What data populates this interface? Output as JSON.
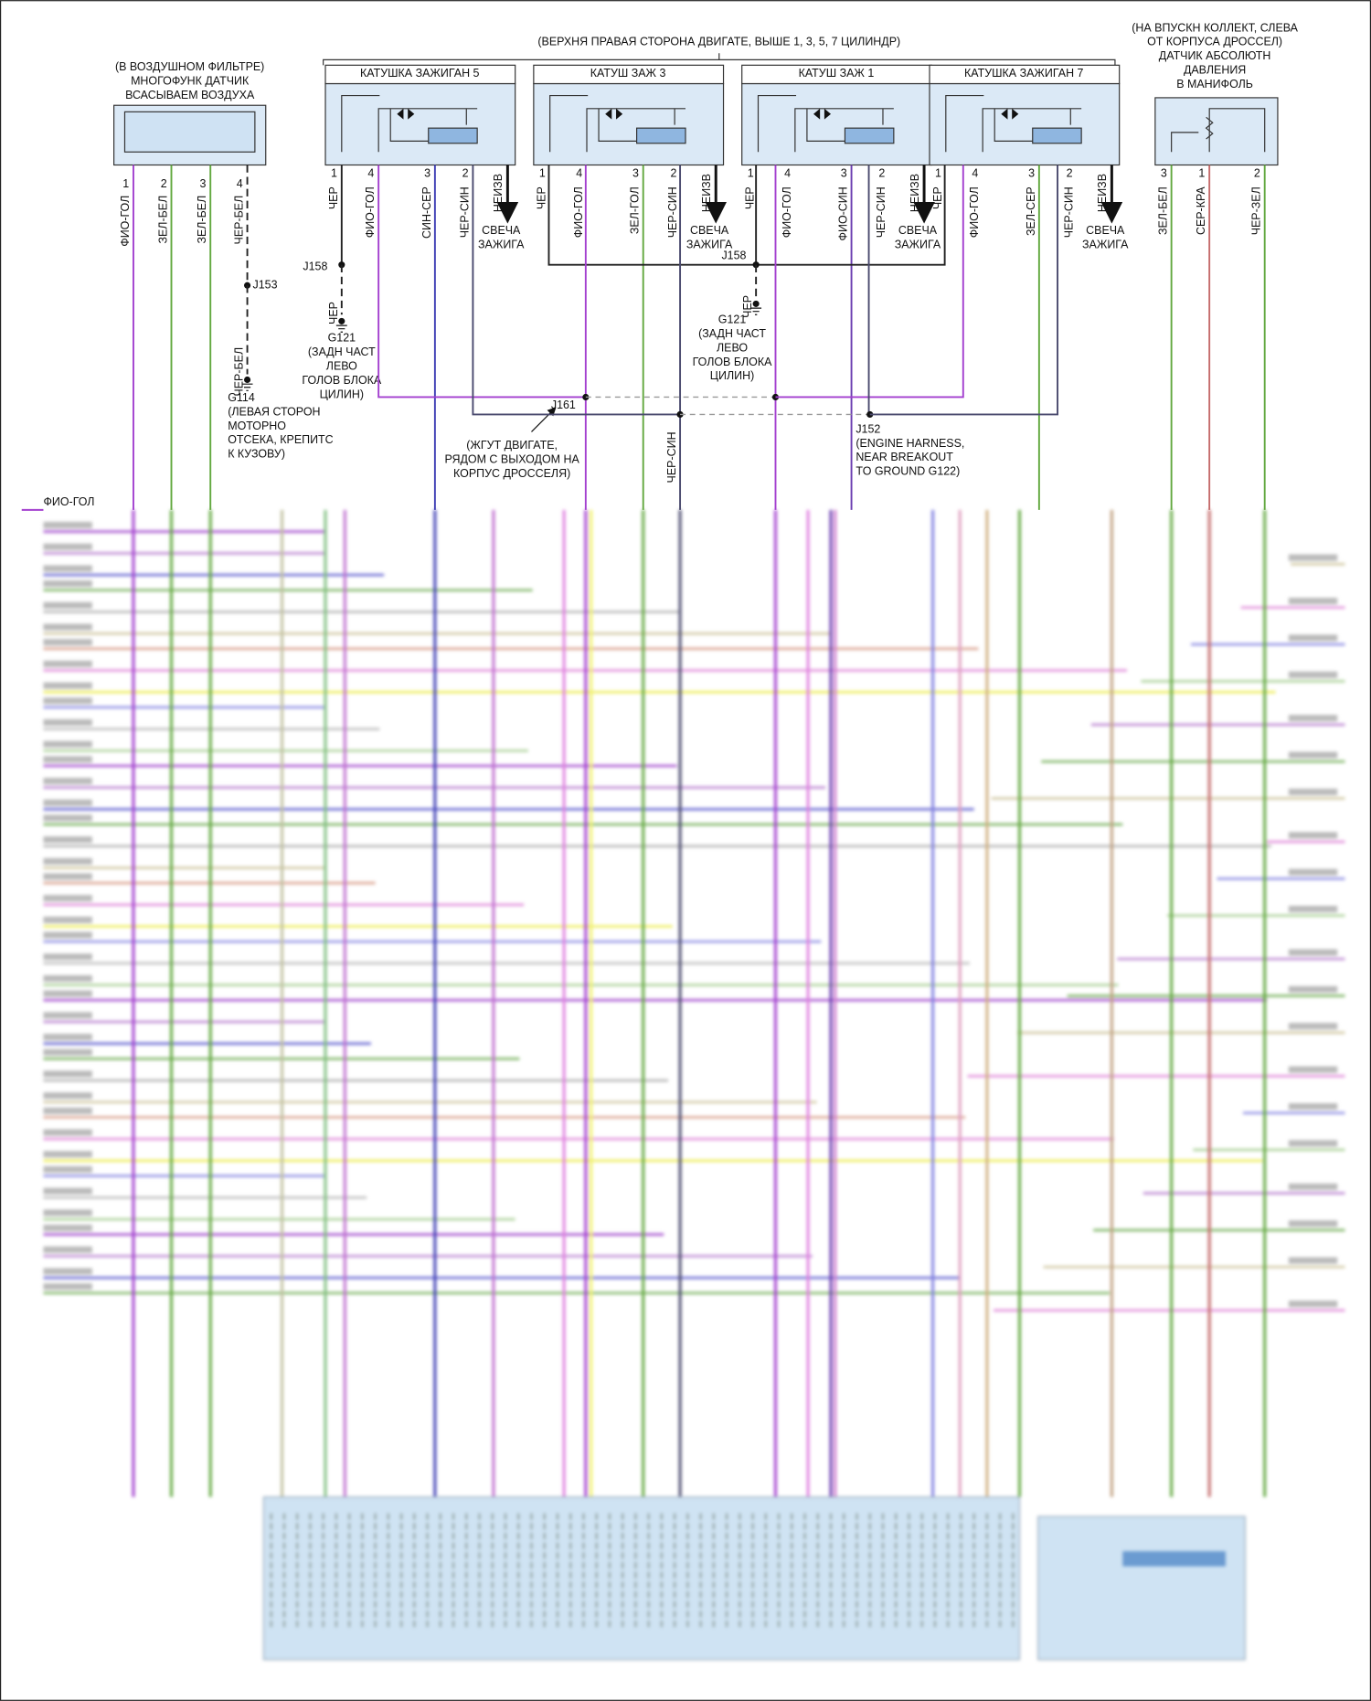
{
  "header": {
    "title": "(ВЕРХНЯ ПРАВАЯ СТОРОНА ДВИГАТЕ, ВЫШЕ 1, 3, 5, 7 ЦИЛИНДР)"
  },
  "air_sensor": {
    "label": [
      "(В ВОЗДУШНОМ ФИЛЬТРЕ)",
      "МНОГОФУНК ДАТЧИК",
      "ВСАСЫВАЕМ ВОЗДУХА"
    ],
    "pins": [
      "1",
      "2",
      "3",
      "4"
    ],
    "wires": [
      "ФИО-ГОЛ",
      "ЗЕЛ-БЕЛ",
      "ЗЕЛ-БЕЛ",
      "ЧЕР-БЕЛ"
    ]
  },
  "coils": [
    {
      "title": "КАТУШКА ЗАЖИГАН 5",
      "pins": [
        "1",
        "4",
        "3",
        "2"
      ],
      "wires": [
        "ЧЕР",
        "ФИО-ГОЛ",
        "СИН-СЕР",
        "ЧЕР-СИН"
      ],
      "output": "НЕИЗВ",
      "plug": [
        "СВЕЧА",
        "ЗАЖИГА"
      ]
    },
    {
      "title": "КАТУШ ЗАЖ 3",
      "pins": [
        "1",
        "4",
        "3",
        "2"
      ],
      "wires": [
        "ЧЕР",
        "ФИО-ГОЛ",
        "ЗЕЛ-ГОЛ",
        "ЧЕР-СИН"
      ],
      "output": "НЕИЗВ",
      "plug": [
        "СВЕЧА",
        "ЗАЖИГА"
      ]
    },
    {
      "title": "КАТУШ ЗАЖ 1",
      "pins": [
        "1",
        "4",
        "3",
        "2"
      ],
      "wires": [
        "ЧЕР",
        "ФИО-ГОЛ",
        "ФИО-СИН",
        "ЧЕР-СИН"
      ],
      "output": "НЕИЗВ",
      "plug": [
        "СВЕЧА",
        "ЗАЖИГА"
      ]
    },
    {
      "title": "КАТУШКА ЗАЖИГАН 7",
      "pins": [
        "1",
        "4",
        "3",
        "2"
      ],
      "wires": [
        "ЧЕР",
        "ФИО-ГОЛ",
        "ЗЕЛ-СЕР",
        "ЧЕР-СИН"
      ],
      "output": "НЕИЗВ",
      "plug": [
        "СВЕЧА",
        "ЗАЖИГА"
      ]
    }
  ],
  "map_sensor": {
    "label": [
      "(НА ВПУСКН КОЛЛЕКТ, СЛЕВА",
      "ОТ КОРПУСА ДРОССЕЛ)",
      "ДАТЧИК АБСОЛЮТН",
      "ДАВЛЕНИЯ",
      "В МАНИФОЛЬ"
    ],
    "pins": [
      "3",
      "1",
      "2"
    ],
    "wires": [
      "ЗЕЛ-БЕЛ",
      "СЕР-КРА",
      "ЧЕР-ЗЕЛ"
    ]
  },
  "splices": {
    "j153": "J153",
    "j158_left": "J158",
    "j158_mid": "J158",
    "j161": "J161",
    "j152": [
      "J152",
      "(ENGINE HARNESS,",
      "NEAR BREAKOUT",
      "TO GROUND G122)"
    ]
  },
  "grounds": {
    "g114": [
      "G114",
      "(ЛЕВАЯ СТОРОН",
      "МОТОРНО",
      "ОТСЕКА, КРЕПИТС",
      "К КУЗОВУ)"
    ],
    "g121_left": [
      "G121",
      "(ЗАДН ЧАСТ",
      "ЛЕВО",
      "ГОЛОВ БЛОКА",
      "ЦИЛИН)"
    ],
    "g121_mid": [
      "G121",
      "(ЗАДН ЧАСТ",
      "ЛЕВО",
      "ГОЛОВ БЛОКА",
      "ЦИЛИН)"
    ]
  },
  "jumper_labels": {
    "j153_wire": "ЧЕР-БЕЛ",
    "g121_left_wire": "ЧЕР",
    "g121_mid_wire": "ЧЕР",
    "trunk_wire": "ЧЕР-СИН"
  },
  "harness_note": [
    "(ЖГУТ ДВИГАТЕ,",
    "РЯДОМ С ВЫХОДОМ НА",
    "КОРПУС ДРОССЕЛЯ)"
  ],
  "left_edge_label": "ФИО-ГОЛ"
}
